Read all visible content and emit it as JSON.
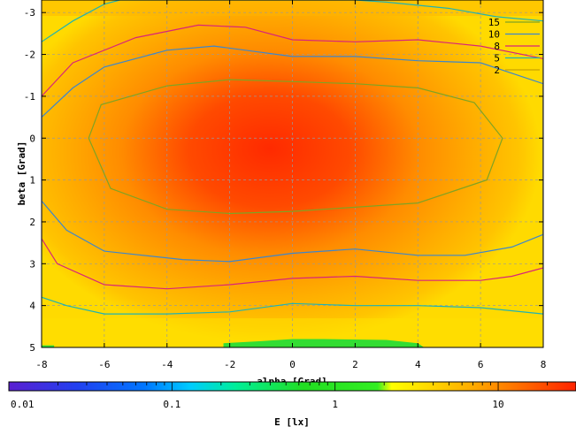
{
  "chart_data": {
    "type": "heatmap",
    "title": "",
    "xlabel": "alpha [Grad]",
    "ylabel": "beta [Grad]",
    "xlim": [
      -8,
      8
    ],
    "ylim": [
      -3.3,
      5
    ],
    "y_axis_inverted": true,
    "xticks": [
      "-8",
      "-6",
      "-4",
      "-2",
      "0",
      "2",
      "4",
      "6",
      "8"
    ],
    "yticks": [
      "-3",
      "-2",
      "-1",
      "0",
      "1",
      "2",
      "3",
      "4",
      "5"
    ],
    "grid": true,
    "colorbar": {
      "label": "E [lx]",
      "scale": "log",
      "range": [
        0.01,
        30
      ],
      "ticks": [
        "0.01",
        "0.1",
        "1",
        "10"
      ],
      "colors": [
        "#5a1fd0",
        "#2255ee",
        "#00ccff",
        "#00ee99",
        "#22dd22",
        "#ffff00",
        "#ffaa00",
        "#ff2200"
      ]
    },
    "legend_position": "top-right",
    "series": [
      {
        "name": "15",
        "color": "#7fa323",
        "points": [
          [
            -6.5,
            0
          ],
          [
            -6.1,
            -0.8
          ],
          [
            -4,
            -1.25
          ],
          [
            -2,
            -1.4
          ],
          [
            0,
            -1.35
          ],
          [
            2,
            -1.3
          ],
          [
            4,
            -1.2
          ],
          [
            5.8,
            -0.85
          ],
          [
            6.7,
            0
          ],
          [
            6.2,
            1
          ],
          [
            4,
            1.55
          ],
          [
            2,
            1.65
          ],
          [
            0,
            1.75
          ],
          [
            -2,
            1.8
          ],
          [
            -4,
            1.7
          ],
          [
            -5.8,
            1.2
          ],
          [
            -6.5,
            0
          ]
        ]
      },
      {
        "name": "10",
        "color": "#3d86cc",
        "points": [
          [
            -8,
            -0.5
          ],
          [
            -7,
            -1.2
          ],
          [
            -6,
            -1.7
          ],
          [
            -4,
            -2.1
          ],
          [
            -2.5,
            -2.2
          ],
          [
            -1.5,
            -2.1
          ],
          [
            0,
            -1.95
          ],
          [
            2,
            -1.95
          ],
          [
            4,
            -1.85
          ],
          [
            6,
            -1.8
          ],
          [
            8,
            -1.3
          ],
          [
            8,
            2.3
          ],
          [
            7,
            2.6
          ],
          [
            5.5,
            2.8
          ],
          [
            4,
            2.8
          ],
          [
            2,
            2.65
          ],
          [
            0,
            2.75
          ],
          [
            -2,
            2.95
          ],
          [
            -3.5,
            2.9
          ],
          [
            -6,
            2.7
          ],
          [
            -7.2,
            2.2
          ],
          [
            -8,
            1.5
          ],
          [
            -8,
            -0.5
          ]
        ]
      },
      {
        "name": "8",
        "color": "#d8247a",
        "points": [
          [
            -8,
            -1.0
          ],
          [
            -7,
            -1.8
          ],
          [
            -5,
            -2.4
          ],
          [
            -3,
            -2.7
          ],
          [
            -1.5,
            -2.65
          ],
          [
            0,
            -2.35
          ],
          [
            2,
            -2.3
          ],
          [
            4,
            -2.35
          ],
          [
            6,
            -2.2
          ],
          [
            8,
            -1.9
          ],
          [
            8,
            3.1
          ],
          [
            7,
            3.3
          ],
          [
            6,
            3.4
          ],
          [
            4,
            3.4
          ],
          [
            2,
            3.3
          ],
          [
            0,
            3.35
          ],
          [
            -2,
            3.5
          ],
          [
            -4,
            3.6
          ],
          [
            -6,
            3.5
          ],
          [
            -7.5,
            3.0
          ],
          [
            -8,
            2.4
          ],
          [
            -8,
            -1.0
          ]
        ]
      },
      {
        "name": "5",
        "color": "#1fb3b3",
        "points": [
          [
            -8,
            -2.3
          ],
          [
            -7,
            -2.8
          ],
          [
            -6,
            -3.2
          ],
          [
            -5.5,
            -3.3
          ],
          [
            2,
            -3.3
          ],
          [
            3,
            -3.25
          ],
          [
            5,
            -3.1
          ],
          [
            6.5,
            -2.9
          ],
          [
            8,
            -2.8
          ],
          [
            8,
            4.2
          ],
          [
            6,
            4.05
          ],
          [
            4,
            4.0
          ],
          [
            2,
            4.0
          ],
          [
            0,
            3.95
          ],
          [
            -2,
            4.15
          ],
          [
            -4,
            4.2
          ],
          [
            -6,
            4.2
          ],
          [
            -7.2,
            4.0
          ],
          [
            -8,
            3.8
          ],
          [
            -8,
            -2.3
          ]
        ]
      },
      {
        "name": "2",
        "color": "#c9a300",
        "points": []
      }
    ],
    "green_patches": [
      [
        [
          -8,
          4.95
        ],
        [
          -7.6,
          4.95
        ],
        [
          -7.6,
          5
        ],
        [
          -8,
          5
        ]
      ],
      [
        [
          -2.2,
          4.9
        ],
        [
          -1,
          4.85
        ],
        [
          0,
          4.8
        ],
        [
          1,
          4.8
        ],
        [
          3,
          4.82
        ],
        [
          4,
          4.9
        ],
        [
          4.2,
          5
        ],
        [
          -2.2,
          5
        ]
      ]
    ]
  }
}
